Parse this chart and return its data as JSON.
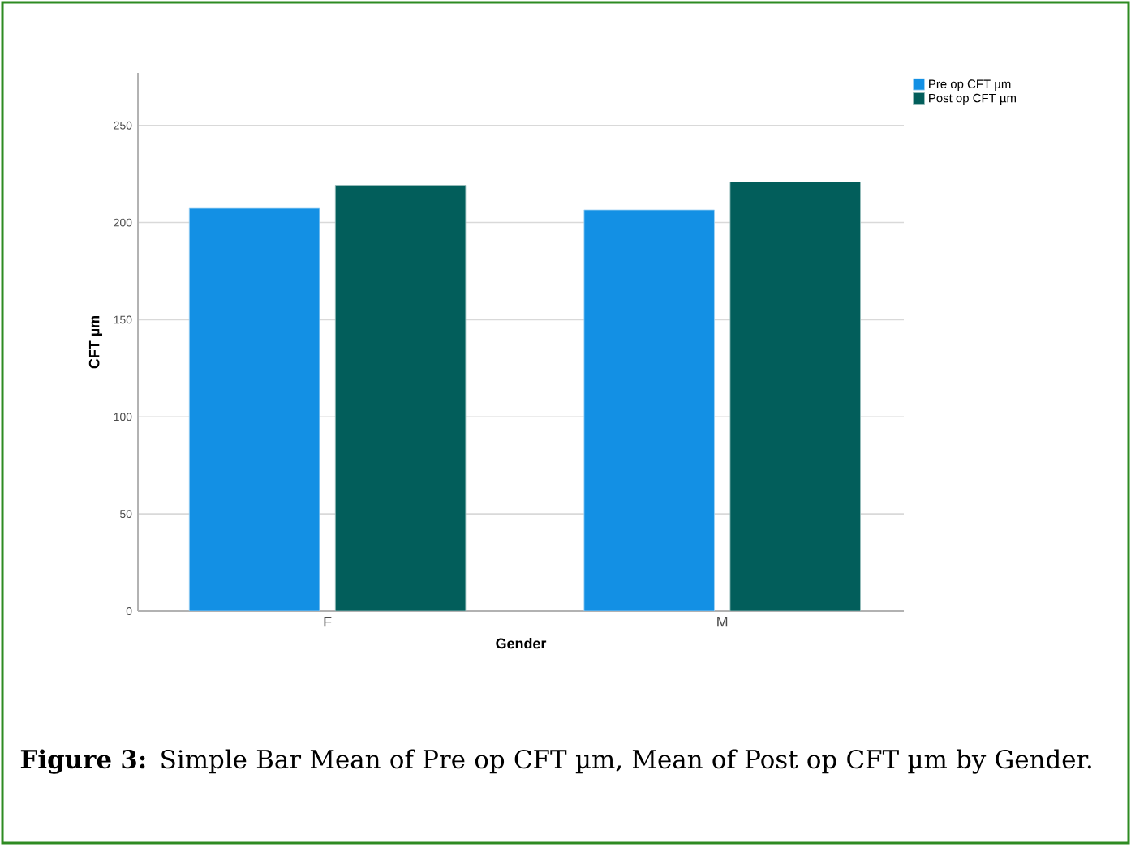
{
  "chart_data": {
    "type": "bar",
    "categories": [
      "F",
      "M"
    ],
    "series": [
      {
        "name": "Pre op CFT µm",
        "color": "#1390e4",
        "values": [
          207.3,
          206.5
        ]
      },
      {
        "name": "Post op CFT µm",
        "color": "#025e5b",
        "values": [
          219.2,
          220.9
        ]
      }
    ],
    "xlabel": "Gender",
    "ylabel": "CFT µm",
    "ylim": [
      0,
      277
    ],
    "yticks": [
      0,
      50,
      100,
      150,
      200,
      250
    ],
    "grid": "y",
    "legend": "top right",
    "annotations": [
      "**Figure 3:** Simple Bar Mean of Pre op CFT µm, Mean of Post op CFT µm by Gender."
    ]
  }
}
